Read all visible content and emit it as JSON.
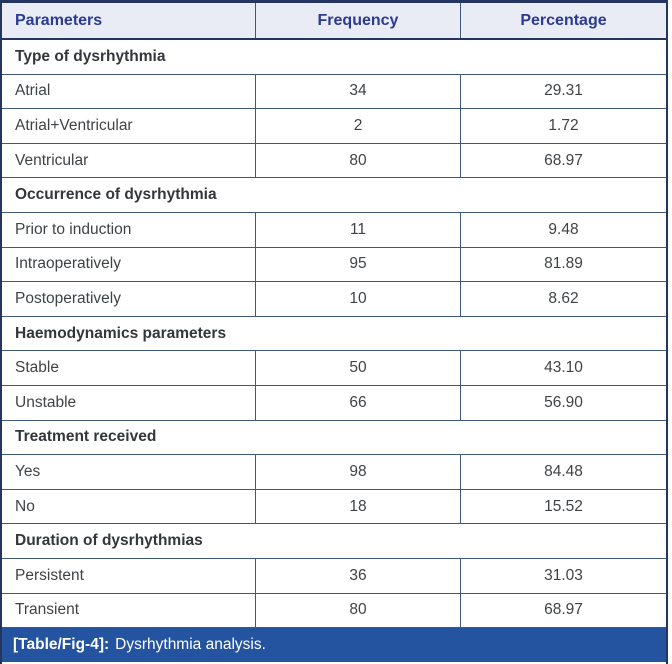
{
  "header": {
    "columns": [
      "Parameters",
      "Frequency",
      "Percentage"
    ]
  },
  "sections": [
    {
      "title": "Type of dysrhythmia",
      "rows": [
        {
          "label": "Atrial",
          "frequency": "34",
          "percentage": "29.31"
        },
        {
          "label": "Atrial+Ventricular",
          "frequency": "2",
          "percentage": "1.72"
        },
        {
          "label": "Ventricular",
          "frequency": "80",
          "percentage": "68.97"
        }
      ]
    },
    {
      "title": "Occurrence of dysrhythmia",
      "rows": [
        {
          "label": "Prior to induction",
          "frequency": "11",
          "percentage": "9.48"
        },
        {
          "label": "Intraoperatively",
          "frequency": "95",
          "percentage": "81.89"
        },
        {
          "label": "Postoperatively",
          "frequency": "10",
          "percentage": "8.62"
        }
      ]
    },
    {
      "title": "Haemodynamics parameters",
      "rows": [
        {
          "label": "Stable",
          "frequency": "50",
          "percentage": "43.10"
        },
        {
          "label": "Unstable",
          "frequency": "66",
          "percentage": "56.90"
        }
      ]
    },
    {
      "title": "Treatment received",
      "rows": [
        {
          "label": "Yes",
          "frequency": "98",
          "percentage": "84.48"
        },
        {
          "label": "No",
          "frequency": "18",
          "percentage": "15.52"
        }
      ]
    },
    {
      "title": "Duration of dysrhythmias",
      "rows": [
        {
          "label": "Persistent",
          "frequency": "36",
          "percentage": "31.03"
        },
        {
          "label": "Transient",
          "frequency": "80",
          "percentage": "68.97"
        }
      ]
    }
  ],
  "caption": {
    "tag": "[Table/Fig-4]:",
    "text": "Dysrhythmia analysis."
  },
  "colors": {
    "header_bg": "#eaecf5",
    "header_text": "#2c3b90",
    "grid_line": "#3d587f",
    "outer_border": "#24365f",
    "caption_bg": "#2453a0",
    "caption_text": "#ffffff",
    "body_text": "#3f4346"
  },
  "chart_data": {
    "type": "table",
    "title": "[Table/Fig-4]: Dysrhythmia analysis.",
    "columns": [
      "Parameters",
      "Frequency",
      "Percentage"
    ],
    "rows": [
      [
        "Type of dysrhythmia",
        "",
        ""
      ],
      [
        "Atrial",
        34,
        29.31
      ],
      [
        "Atrial+Ventricular",
        2,
        1.72
      ],
      [
        "Ventricular",
        80,
        68.97
      ],
      [
        "Occurrence of dysrhythmia",
        "",
        ""
      ],
      [
        "Prior to induction",
        11,
        9.48
      ],
      [
        "Intraoperatively",
        95,
        81.89
      ],
      [
        "Postoperatively",
        10,
        8.62
      ],
      [
        "Haemodynamics parameters",
        "",
        ""
      ],
      [
        "Stable",
        50,
        43.1
      ],
      [
        "Unstable",
        66,
        56.9
      ],
      [
        "Treatment received",
        "",
        ""
      ],
      [
        "Yes",
        98,
        84.48
      ],
      [
        "No",
        18,
        15.52
      ],
      [
        "Duration of dysrhythmias",
        "",
        ""
      ],
      [
        "Persistent",
        36,
        31.03
      ],
      [
        "Transient",
        80,
        68.97
      ]
    ]
  }
}
